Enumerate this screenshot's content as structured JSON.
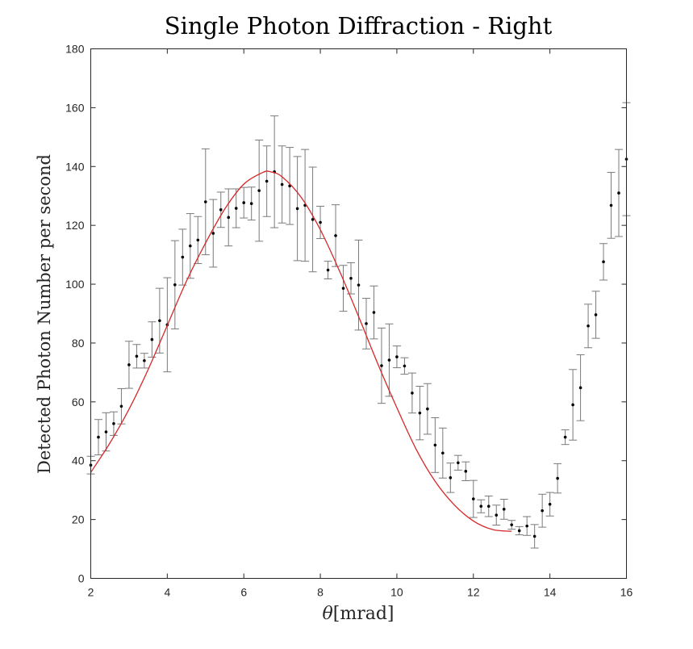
{
  "chart_data": {
    "type": "scatter",
    "title": "Single Photon Diffraction - Right",
    "xlabel_symbol": "θ",
    "xlabel_unit": "[mrad]",
    "ylabel": "Detected Photon Number per second",
    "xlim": [
      2,
      16
    ],
    "ylim": [
      0,
      180
    ],
    "x_ticks": [
      2,
      4,
      6,
      8,
      10,
      12,
      14,
      16
    ],
    "y_ticks": [
      0,
      20,
      40,
      60,
      80,
      100,
      120,
      140,
      160,
      180
    ],
    "grid": false,
    "legend": "none",
    "data_color": "#000000",
    "errorbar_color": "#7a7a7a",
    "fit_color": "#d62728",
    "data": {
      "x": [
        2.0,
        2.2,
        2.4,
        2.6,
        2.8,
        3.0,
        3.2,
        3.4,
        3.6,
        3.8,
        4.0,
        4.2,
        4.4,
        4.6,
        4.8,
        5.0,
        5.2,
        5.4,
        5.6,
        5.8,
        6.0,
        6.2,
        6.4,
        6.6,
        6.8,
        7.0,
        7.2,
        7.4,
        7.6,
        7.8,
        8.0,
        8.2,
        8.4,
        8.6,
        8.8,
        9.0,
        9.2,
        9.4,
        9.6,
        9.8,
        10.0,
        10.2,
        10.4,
        10.6,
        10.8,
        11.0,
        11.2,
        11.4,
        11.6,
        11.8,
        12.0,
        12.2,
        12.4,
        12.6,
        12.8,
        13.0,
        13.2,
        13.4,
        13.6,
        13.8,
        14.0,
        14.2,
        14.4,
        14.6,
        14.8,
        15.0,
        15.2,
        15.4,
        15.6,
        15.8,
        16.0
      ],
      "y": [
        38.5,
        48,
        49.8,
        52.6,
        58.5,
        72.6,
        75.5,
        74,
        81.2,
        87.6,
        86.2,
        99.8,
        109.2,
        113,
        115,
        128,
        117.3,
        125.3,
        122.7,
        125.8,
        127.7,
        127.4,
        131.8,
        135,
        138.2,
        133.9,
        133.4,
        125.7,
        126.8,
        122,
        121,
        104.8,
        116.5,
        98.6,
        102,
        99.7,
        86.6,
        90.4,
        72.3,
        74.2,
        75.3,
        72.2,
        63,
        56.2,
        57.6,
        45.3,
        42.6,
        34.2,
        39.3,
        36.4,
        27,
        24.5,
        24.5,
        21.5,
        23.5,
        18.2,
        16.2,
        17.8,
        14.3,
        23,
        25.2,
        34,
        48,
        59,
        64.8,
        85.8,
        89.6,
        107.6,
        126.8,
        131,
        142.5
      ],
      "err": [
        3,
        6,
        6.5,
        4,
        6,
        8,
        4,
        2.5,
        6,
        11,
        16,
        15,
        9.5,
        11,
        8,
        18,
        11.5,
        6,
        9.7,
        6.6,
        5.2,
        5.6,
        17.2,
        12,
        19,
        13.1,
        13.1,
        17.7,
        19,
        17.8,
        5.5,
        3,
        10.5,
        7.8,
        5.3,
        15.3,
        8.6,
        9,
        12.8,
        12.3,
        3.7,
        2.8,
        6.8,
        9.1,
        8.6,
        9.3,
        8.5,
        5,
        2.5,
        3.2,
        6.3,
        2.2,
        3.5,
        3.4,
        3.4,
        1.5,
        1.4,
        3.2,
        4,
        5.6,
        4,
        5,
        2.5,
        12,
        11.2,
        7.4,
        8,
        6.2,
        11.2,
        14.8,
        19.2
      ]
    },
    "fit": {
      "x": [
        2.0,
        2.5,
        3.0,
        3.5,
        4.0,
        4.5,
        5.0,
        5.5,
        6.0,
        6.5,
        6.7,
        7.0,
        7.5,
        8.0,
        8.5,
        9.0,
        9.5,
        10.0,
        10.5,
        11.0,
        11.5,
        12.0,
        12.5,
        13.0
      ],
      "y": [
        36,
        46,
        57.5,
        71,
        86,
        101,
        114,
        125.5,
        134,
        138,
        138.2,
        136.5,
        129.5,
        118.5,
        104.5,
        89,
        73,
        58,
        44,
        33,
        25,
        19.5,
        16.6,
        16
      ]
    }
  }
}
